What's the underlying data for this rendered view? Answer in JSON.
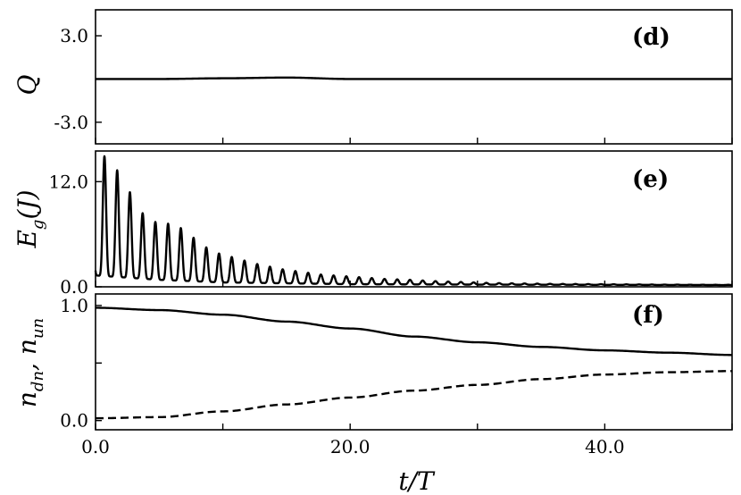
{
  "chart_data": [
    {
      "type": "line",
      "panel": "(d)",
      "ylabel": "Q",
      "xlim": [
        0,
        50
      ],
      "ylim": [
        -4.5,
        4.8
      ],
      "yticks": [
        -3.0,
        3.0
      ],
      "ytick_labels": [
        "-3.0",
        "3.0"
      ],
      "xticks": [
        0,
        10,
        20,
        30,
        40,
        50
      ],
      "series": [
        {
          "style": "solid",
          "x": [
            0,
            5,
            10,
            15,
            20,
            25,
            30,
            35,
            40,
            45,
            50
          ],
          "y": [
            0.0,
            0.0,
            0.05,
            0.1,
            0.0,
            0.0,
            0.0,
            0.0,
            0.0,
            0.0,
            0.0
          ]
        }
      ]
    },
    {
      "type": "line",
      "panel": "(e)",
      "ylabel": "E_g(J)",
      "xlim": [
        0,
        50
      ],
      "ylim": [
        0,
        15.5
      ],
      "yticks": [
        0.0,
        12.0
      ],
      "ytick_labels": [
        "0.0",
        "12.0"
      ],
      "xticks": [
        0,
        10,
        20,
        30,
        40,
        50
      ],
      "oscillation": {
        "period": 1.0,
        "first_peak_t": 0.7,
        "baseline": [
          [
            0,
            1.3
          ],
          [
            5,
            0.8
          ],
          [
            10,
            0.5
          ],
          [
            20,
            0.3
          ],
          [
            30,
            0.25
          ],
          [
            50,
            0.2
          ]
        ],
        "peaks": [
          14.9,
          13.3,
          10.8,
          8.4,
          7.4,
          7.2,
          6.7,
          5.6,
          4.5,
          3.8,
          3.4,
          3.0,
          2.6,
          2.3,
          2.0,
          1.8,
          1.6,
          1.4,
          1.3,
          1.2,
          1.1,
          1.0,
          0.9,
          0.85,
          0.8,
          0.72,
          0.65,
          0.6,
          0.55,
          0.5,
          0.45,
          0.42,
          0.4,
          0.38,
          0.36,
          0.34,
          0.33,
          0.32,
          0.31,
          0.3,
          0.29,
          0.28,
          0.27,
          0.26,
          0.25,
          0.25,
          0.24,
          0.24,
          0.23,
          0.23
        ]
      }
    },
    {
      "type": "line",
      "panel": "(f)",
      "ylabel": "n_dn, n_un",
      "xlim": [
        0,
        50
      ],
      "ylim": [
        -0.08,
        1.1
      ],
      "yticks": [
        0.0,
        0.5,
        1.0
      ],
      "ytick_labels": [
        "0.0",
        "",
        "1.0"
      ],
      "xticks": [
        0,
        10,
        20,
        30,
        40,
        50
      ],
      "xtick_labels": [
        "0.0",
        "",
        "20.0",
        "",
        "40.0",
        ""
      ],
      "xlabel": "t/T",
      "series": [
        {
          "style": "solid",
          "x": [
            0,
            5,
            10,
            15,
            20,
            25,
            30,
            35,
            40,
            45,
            50
          ],
          "y": [
            0.98,
            0.96,
            0.92,
            0.86,
            0.8,
            0.73,
            0.68,
            0.64,
            0.61,
            0.59,
            0.57
          ]
        },
        {
          "style": "dashed",
          "x": [
            0,
            5,
            10,
            15,
            20,
            25,
            30,
            35,
            40,
            45,
            50
          ],
          "y": [
            0.02,
            0.03,
            0.08,
            0.14,
            0.2,
            0.26,
            0.31,
            0.36,
            0.4,
            0.42,
            0.43
          ]
        }
      ]
    }
  ]
}
